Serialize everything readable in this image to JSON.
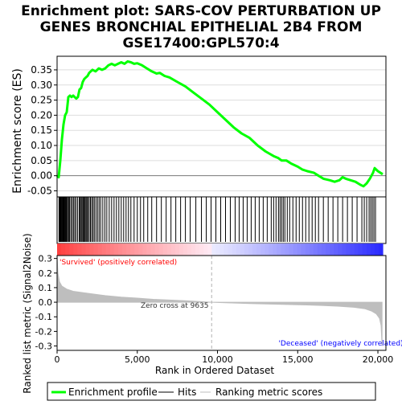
{
  "title_lines": [
    "Enrichment plot: SARS-COV PERTURBATION UP",
    "GENES BRONCHIAL EPITHELIAL 2B4 FROM",
    "GSE17400:GPL570:4"
  ],
  "colors": {
    "enrichment_line": "#00ff00",
    "hit_line": "#000000",
    "positive_fill": "#ff0000",
    "negative_fill": "#0000ff",
    "metric_fill": "#bebebe",
    "zero_cross_line": "#b0b0b0",
    "positive_label": "#ff0000",
    "negative_label": "#0000ff"
  },
  "chart_data": [
    {
      "type": "line",
      "name": "enrichment-score",
      "ylabel": "Enrichment score (ES)",
      "xlim": [
        0,
        20500
      ],
      "ylim": [
        -0.07,
        0.395
      ],
      "yticks": [
        -0.05,
        0.0,
        0.05,
        0.1,
        0.15,
        0.2,
        0.25,
        0.3,
        0.35
      ],
      "ytick_labels": [
        "-0.05",
        "0.00",
        "0.05",
        "0.10",
        "0.15",
        "0.20",
        "0.25",
        "0.30",
        "0.35"
      ],
      "grid": true,
      "series": [
        {
          "name": "Enrichment profile",
          "points": [
            [
              0,
              0.0
            ],
            [
              100,
              -0.005
            ],
            [
              200,
              0.05
            ],
            [
              300,
              0.12
            ],
            [
              400,
              0.17
            ],
            [
              500,
              0.2
            ],
            [
              600,
              0.21
            ],
            [
              700,
              0.26
            ],
            [
              800,
              0.265
            ],
            [
              900,
              0.26
            ],
            [
              1000,
              0.265
            ],
            [
              1100,
              0.26
            ],
            [
              1200,
              0.255
            ],
            [
              1300,
              0.26
            ],
            [
              1400,
              0.285
            ],
            [
              1500,
              0.29
            ],
            [
              1600,
              0.31
            ],
            [
              1700,
              0.32
            ],
            [
              1800,
              0.325
            ],
            [
              1900,
              0.33
            ],
            [
              2000,
              0.34
            ],
            [
              2100,
              0.345
            ],
            [
              2200,
              0.35
            ],
            [
              2400,
              0.345
            ],
            [
              2600,
              0.355
            ],
            [
              2800,
              0.35
            ],
            [
              3000,
              0.355
            ],
            [
              3200,
              0.365
            ],
            [
              3400,
              0.37
            ],
            [
              3600,
              0.365
            ],
            [
              3800,
              0.37
            ],
            [
              4000,
              0.375
            ],
            [
              4200,
              0.37
            ],
            [
              4400,
              0.378
            ],
            [
              4600,
              0.375
            ],
            [
              4800,
              0.37
            ],
            [
              5000,
              0.372
            ],
            [
              5300,
              0.365
            ],
            [
              5600,
              0.355
            ],
            [
              5900,
              0.345
            ],
            [
              6200,
              0.338
            ],
            [
              6400,
              0.34
            ],
            [
              6700,
              0.33
            ],
            [
              7000,
              0.325
            ],
            [
              7500,
              0.31
            ],
            [
              8000,
              0.295
            ],
            [
              8500,
              0.275
            ],
            [
              9000,
              0.255
            ],
            [
              9500,
              0.235
            ],
            [
              10000,
              0.21
            ],
            [
              10500,
              0.185
            ],
            [
              11000,
              0.16
            ],
            [
              11500,
              0.14
            ],
            [
              12000,
              0.125
            ],
            [
              12500,
              0.1
            ],
            [
              13000,
              0.08
            ],
            [
              13500,
              0.065
            ],
            [
              13800,
              0.058
            ],
            [
              14000,
              0.05
            ],
            [
              14300,
              0.05
            ],
            [
              14600,
              0.04
            ],
            [
              15000,
              0.03
            ],
            [
              15300,
              0.02
            ],
            [
              15600,
              0.015
            ],
            [
              16000,
              0.01
            ],
            [
              16300,
              0.0
            ],
            [
              16600,
              -0.01
            ],
            [
              17000,
              -0.015
            ],
            [
              17300,
              -0.02
            ],
            [
              17600,
              -0.015
            ],
            [
              17800,
              -0.005
            ],
            [
              18000,
              -0.01
            ],
            [
              18300,
              -0.015
            ],
            [
              18600,
              -0.02
            ],
            [
              18900,
              -0.03
            ],
            [
              19100,
              -0.035
            ],
            [
              19300,
              -0.025
            ],
            [
              19500,
              -0.01
            ],
            [
              19700,
              0.01
            ],
            [
              19800,
              0.025
            ],
            [
              20000,
              0.015
            ],
            [
              20300,
              0.005
            ]
          ]
        }
      ]
    },
    {
      "type": "hits",
      "name": "hits",
      "series_name": "Hits",
      "xlim": [
        0,
        20500
      ],
      "positions": [
        120,
        160,
        200,
        240,
        280,
        320,
        360,
        400,
        440,
        480,
        520,
        560,
        600,
        660,
        720,
        780,
        860,
        940,
        1020,
        1100,
        1180,
        1280,
        1380,
        1440,
        1500,
        1560,
        1620,
        1680,
        1740,
        1800,
        1860,
        1920,
        2000,
        2080,
        2160,
        2240,
        2320,
        2420,
        2520,
        2620,
        2720,
        2850,
        2980,
        3100,
        3250,
        3400,
        3550,
        3700,
        3850,
        4000,
        4150,
        4300,
        4450,
        4600,
        4800,
        5000,
        5200,
        5400,
        5650,
        5900,
        6200,
        6500,
        6800,
        7100,
        7400,
        7700,
        8000,
        8300,
        8650,
        9000,
        9300,
        9600,
        9900,
        10200,
        10500,
        10800,
        11100,
        11350,
        11600,
        11850,
        12100,
        12350,
        12600,
        12850,
        13100,
        13350,
        13500,
        13650,
        13800,
        13900,
        14000,
        14100,
        14200,
        14350,
        14500,
        14700,
        14900,
        15100,
        15300,
        15500,
        15700,
        15900,
        16100,
        16300,
        16600,
        16900,
        17200,
        17500,
        17800,
        18100,
        18400,
        18700,
        19000,
        19150,
        19300,
        19450,
        19550,
        19650,
        19750,
        19850
      ]
    },
    {
      "type": "heatmap",
      "name": "rank-colorbar",
      "xlim": [
        0,
        20500
      ],
      "zero_cross_rank": 9635
    },
    {
      "type": "area",
      "name": "ranked-list-metric",
      "xlabel": "Rank in Ordered Dataset",
      "ylabel": "Ranked list metric (Signal2Noise)",
      "xlim": [
        0,
        20500
      ],
      "ylim": [
        -0.33,
        0.32
      ],
      "xticks": [
        0,
        5000,
        10000,
        15000,
        20000
      ],
      "xtick_labels": [
        "0",
        "5,000",
        "10,000",
        "15,000",
        "20,000"
      ],
      "yticks": [
        -0.3,
        -0.2,
        -0.1,
        0.0,
        0.1,
        0.2,
        0.3
      ],
      "ytick_labels": [
        "-0.3",
        "-0.2",
        "-0.1",
        "0.0",
        "0.1",
        "0.2",
        "0.3"
      ],
      "series": [
        {
          "name": "Ranking metric scores",
          "points": [
            [
              0,
              0.32
            ],
            [
              50,
              0.2
            ],
            [
              150,
              0.14
            ],
            [
              300,
              0.11
            ],
            [
              600,
              0.09
            ],
            [
              1000,
              0.075
            ],
            [
              2000,
              0.06
            ],
            [
              3000,
              0.045
            ],
            [
              4000,
              0.035
            ],
            [
              5000,
              0.028
            ],
            [
              6000,
              0.02
            ],
            [
              7000,
              0.015
            ],
            [
              8000,
              0.01
            ],
            [
              9000,
              0.004
            ],
            [
              9635,
              0.0
            ],
            [
              10500,
              -0.004
            ],
            [
              12000,
              -0.009
            ],
            [
              13500,
              -0.013
            ],
            [
              15000,
              -0.017
            ],
            [
              16500,
              -0.022
            ],
            [
              17500,
              -0.027
            ],
            [
              18500,
              -0.035
            ],
            [
              19200,
              -0.045
            ],
            [
              19600,
              -0.06
            ],
            [
              19900,
              -0.08
            ],
            [
              20100,
              -0.11
            ],
            [
              20200,
              -0.16
            ],
            [
              20260,
              -0.3
            ]
          ]
        }
      ],
      "annotations": {
        "zero_cross": "Zero cross at 9635",
        "positive": "'Survived' (positively correlated)",
        "negative": "'Deceased' (negatively correlated)"
      }
    }
  ],
  "legend": {
    "placement": "bottom",
    "items": [
      {
        "label": "Enrichment profile",
        "color": "#00ff00"
      },
      {
        "label": "Hits",
        "color": "#000000"
      },
      {
        "label": "Ranking metric scores",
        "color": "#bebebe"
      }
    ]
  }
}
